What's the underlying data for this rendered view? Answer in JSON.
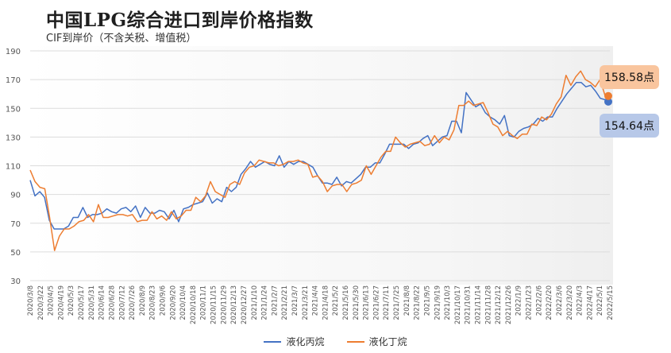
{
  "title": "中国LPG综合进口到岸价格指数",
  "subtitle": "CIF到岸价（不含关税、增值税）",
  "colors": {
    "propane": "#4472c4",
    "butane": "#ed7d31",
    "grid": "#dcdcdc",
    "axis_text": "#555555"
  },
  "callouts": {
    "butane": "158.58点",
    "propane": "154.64点"
  },
  "legend": {
    "propane": "液化丙烷",
    "butane": "液化丁烷"
  },
  "chart_data": {
    "type": "line",
    "ylim": [
      30,
      190
    ],
    "yticks": [
      30,
      50,
      70,
      90,
      110,
      130,
      150,
      170,
      190
    ],
    "grid": true,
    "legend_position": "bottom",
    "x_tick_labels": [
      "2020/3/8",
      "2020/3/22",
      "2020/4/5",
      "2020/4/19",
      "2020/5/3",
      "2020/5/17",
      "2020/5/31",
      "2020/6/14",
      "2020/6/28",
      "2020/7/12",
      "2020/7/26",
      "2020/8/9",
      "2020/8/23",
      "2020/9/6",
      "2020/9/20",
      "2020/10/4",
      "2020/10/18",
      "2020/11/1",
      "2020/11/15",
      "2020/11/29",
      "2020/12/13",
      "2020/12/27",
      "2021/1/10",
      "2021/1/24",
      "2021/2/7",
      "2021/2/21",
      "2021/3/7",
      "2021/3/21",
      "2021/4/4",
      "2021/4/18",
      "2021/5/2",
      "2021/5/16",
      "2021/5/30",
      "2021/6/13",
      "2021/6/27",
      "2021/7/11",
      "2021/7/25",
      "2021/8/8",
      "2021/8/22",
      "2021/9/5",
      "2021/9/19",
      "2021/10/3",
      "2021/10/17",
      "2021/10/31",
      "2021/11/14",
      "2021/11/28",
      "2021/12/12",
      "2021/12/26",
      "2022/1/9",
      "2022/1/23",
      "2022/2/6",
      "2022/2/20",
      "2022/3/6",
      "2022/3/20",
      "2022/4/3",
      "2022/4/17",
      "2022/5/1",
      "2022/5/15"
    ],
    "series": [
      {
        "name": "液化丙烷",
        "values": [
          100,
          89,
          92,
          88,
          72,
          66,
          66,
          66,
          68,
          74,
          74,
          81,
          74,
          76,
          76,
          77,
          80,
          78,
          77,
          80,
          81,
          78,
          82,
          74,
          81,
          77,
          77,
          79,
          78,
          73,
          79,
          71,
          80,
          81,
          83,
          84,
          85,
          91,
          84,
          87,
          85,
          95,
          92,
          95,
          104,
          108,
          113,
          109,
          111,
          113,
          111,
          110,
          117,
          109,
          113,
          111,
          113,
          113,
          111,
          109,
          103,
          98,
          98,
          97,
          102,
          96,
          99,
          98,
          101,
          104,
          109,
          109,
          112,
          112,
          118,
          125,
          125,
          125,
          125,
          122,
          125,
          126,
          129,
          131,
          124,
          127,
          130,
          131,
          141,
          141,
          133,
          161,
          156,
          151,
          153,
          147,
          144,
          142,
          139,
          145,
          131,
          130,
          134,
          136,
          137,
          139,
          143,
          141,
          144,
          144,
          150,
          155,
          160,
          164,
          168,
          168,
          165,
          166,
          162,
          157,
          156,
          154.64
        ]
      },
      {
        "name": "液化丁烷",
        "values": [
          107,
          99,
          95,
          94,
          74,
          51,
          61,
          66,
          66,
          68,
          71,
          72,
          76,
          71,
          83,
          74,
          74,
          75,
          76,
          76,
          75,
          76,
          71,
          72,
          72,
          78,
          73,
          75,
          72,
          78,
          73,
          75,
          79,
          79,
          88,
          85,
          89,
          99,
          92,
          90,
          88,
          97,
          99,
          97,
          105,
          109,
          110,
          114,
          113,
          112,
          112,
          110,
          111,
          113,
          113,
          114,
          112,
          111,
          102,
          103,
          99,
          92,
          96,
          97,
          97,
          92,
          97,
          98,
          100,
          110,
          104,
          110,
          116,
          120,
          120,
          130,
          126,
          123,
          125,
          126,
          127,
          124,
          125,
          131,
          126,
          130,
          128,
          135,
          152,
          152,
          155,
          152,
          153,
          154,
          147,
          139,
          137,
          131,
          134,
          131,
          129,
          132,
          132,
          139,
          138,
          144,
          142,
          146,
          153,
          158,
          173,
          166,
          172,
          176,
          170,
          168,
          165,
          170,
          159,
          158.58
        ]
      }
    ]
  }
}
